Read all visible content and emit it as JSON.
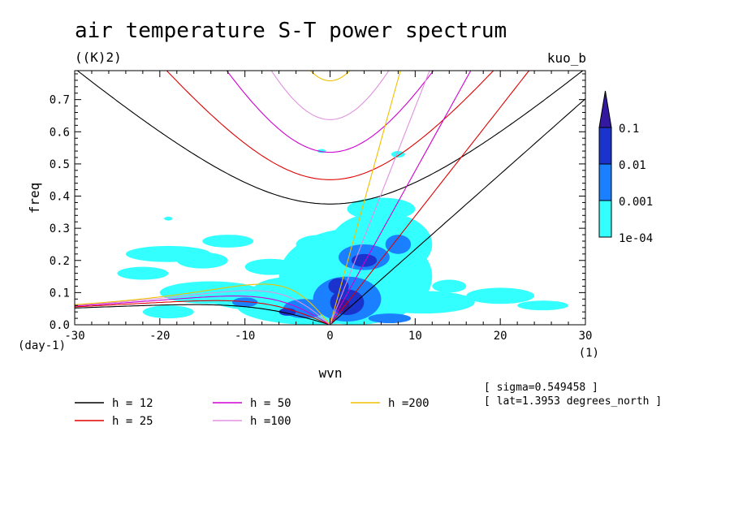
{
  "chart_data": {
    "type": "heatmap",
    "title": "air temperature S-T power spectrum",
    "units": "((K)2)",
    "corner_label": "kuo_b",
    "xlabel": "wvn",
    "ylabel": "freq",
    "x_unit": "(1)",
    "y_unit": "(day-1)",
    "xlim": [
      -30,
      30
    ],
    "ylim": [
      0,
      0.79
    ],
    "xticks": [
      "-30",
      "-20",
      "-10",
      "0",
      "10",
      "20",
      "30"
    ],
    "yticks": [
      "0.0",
      "0.1",
      "0.2",
      "0.3",
      "0.4",
      "0.5",
      "0.6",
      "0.7"
    ],
    "colorbar": {
      "levels": [
        "1e-04",
        "0.001",
        "0.01",
        "0.1"
      ],
      "colors": [
        "#33ffff",
        "#1a80ff",
        "#1a33cc",
        "#3319a0"
      ]
    },
    "info": [
      "[ sigma=0.549458 ]",
      "[ lat=1.3953 degrees_north ]"
    ],
    "dispersion_curves": [
      {
        "label": "h = 12",
        "h": 12,
        "color": "#000000"
      },
      {
        "label": "h = 25",
        "h": 25,
        "color": "#e00000"
      },
      {
        "label": "h = 50",
        "h": 50,
        "color": "#d000d0"
      },
      {
        "label": "h =100",
        "h": 100,
        "color": "#e090e0"
      },
      {
        "label": "h =200",
        "h": 200,
        "color": "#f0c000"
      }
    ]
  }
}
